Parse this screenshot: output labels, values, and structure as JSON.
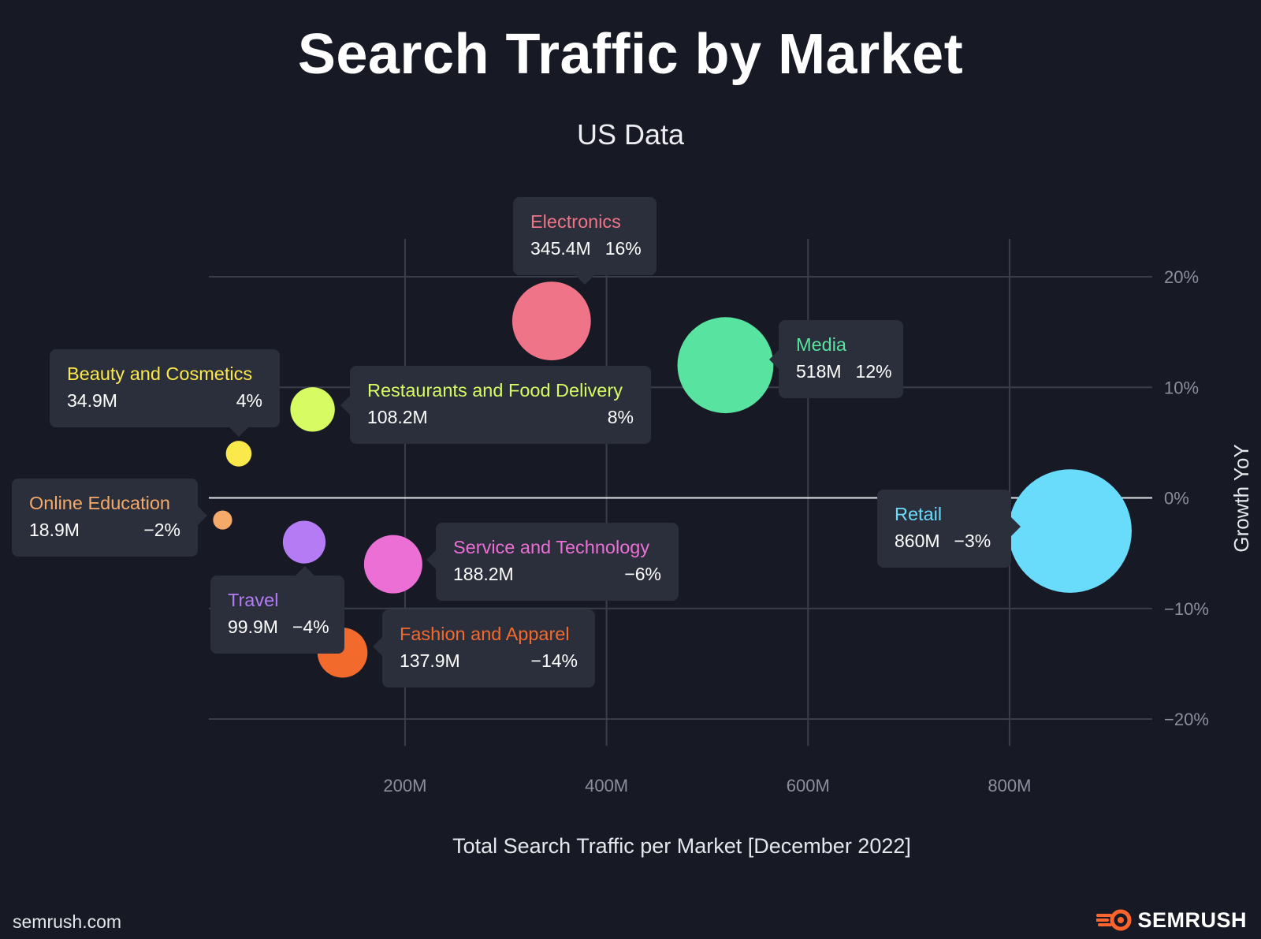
{
  "chart_data": {
    "type": "scatter",
    "title": "Search Traffic by Market",
    "subtitle": "US Data",
    "xlabel": "Total Search Traffic per Market [December 2022]",
    "ylabel": "Growth YoY",
    "xlim": [
      0,
      940
    ],
    "ylim": [
      -22,
      22
    ],
    "x_ticks": [
      {
        "value": 200,
        "label": "200M"
      },
      {
        "value": 400,
        "label": "400M"
      },
      {
        "value": 600,
        "label": "600M"
      },
      {
        "value": 800,
        "label": "800M"
      }
    ],
    "y_ticks": [
      {
        "value": 20,
        "label": "20%"
      },
      {
        "value": 10,
        "label": "10%"
      },
      {
        "value": 0,
        "label": "0%"
      },
      {
        "value": -10,
        "label": "−10%"
      },
      {
        "value": -20,
        "label": "−20%"
      }
    ],
    "grid": true,
    "points": [
      {
        "name": "Electronics",
        "x": 345.4,
        "y": 16,
        "traffic_label": "345.4M",
        "growth_label": "16%",
        "color": "#f07487"
      },
      {
        "name": "Media",
        "x": 518,
        "y": 12,
        "traffic_label": "518M",
        "growth_label": "12%",
        "color": "#59e3a0"
      },
      {
        "name": "Beauty and Cosmetics",
        "x": 34.9,
        "y": 4,
        "traffic_label": "34.9M",
        "growth_label": "4%",
        "color": "#fbe84a"
      },
      {
        "name": "Restaurants and Food Delivery",
        "x": 108.2,
        "y": 8,
        "traffic_label": "108.2M",
        "growth_label": "8%",
        "color": "#d7fb63"
      },
      {
        "name": "Online Education",
        "x": 18.9,
        "y": -2,
        "traffic_label": "18.9M",
        "growth_label": "−2%",
        "color": "#f5aa6a"
      },
      {
        "name": "Travel",
        "x": 99.9,
        "y": -4,
        "traffic_label": "99.9M",
        "growth_label": "−4%",
        "color": "#b47bf5"
      },
      {
        "name": "Service and Technology",
        "x": 188.2,
        "y": -6,
        "traffic_label": "188.2M",
        "growth_label": "−6%",
        "color": "#ec6fd6"
      },
      {
        "name": "Fashion and Apparel",
        "x": 137.9,
        "y": -14,
        "traffic_label": "137.9M",
        "growth_label": "−14%",
        "color": "#f36a2d"
      },
      {
        "name": "Retail",
        "x": 860,
        "y": -3,
        "traffic_label": "860M",
        "growth_label": "−3%",
        "color": "#6adcfb"
      }
    ]
  },
  "footer": {
    "site": "semrush.com",
    "logo_text": "SEMRUSH",
    "logo_color": "#ff642d"
  }
}
